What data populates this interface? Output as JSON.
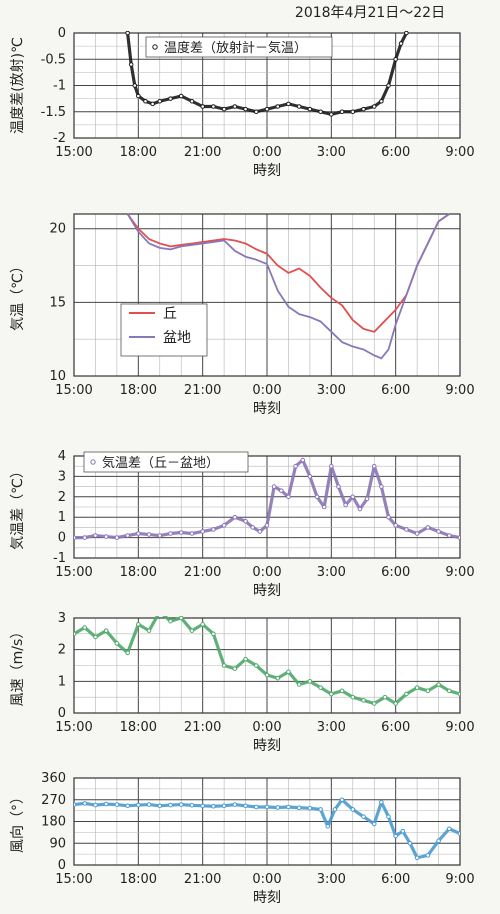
{
  "page_title": "2018年4月21日～22日",
  "x_ticks": [
    "15:00",
    "18:00",
    "21:00",
    "0:00",
    "3:00",
    "6:00",
    "9:00"
  ],
  "chart_data": [
    {
      "type": "scatter",
      "ylabel": "温度差(放射)℃",
      "xlabel": "時刻",
      "ylim": [
        -2,
        0
      ],
      "yticks": [
        "0",
        "-0.5",
        "-1",
        "-1.5",
        "-2"
      ],
      "legend": [
        "温度差（放射計－気温）"
      ],
      "legend_position": "top-left",
      "grid": true,
      "series": [
        {
          "name": "温度差（放射計－気温）",
          "color": "#1a1a1a",
          "x": [
            "17:30",
            "17:40",
            "17:50",
            "18:00",
            "18:20",
            "18:40",
            "19:00",
            "19:30",
            "20:00",
            "20:30",
            "21:00",
            "21:30",
            "22:00",
            "22:30",
            "23:00",
            "23:30",
            "0:00",
            "0:30",
            "1:00",
            "1:30",
            "2:00",
            "2:30",
            "3:00",
            "3:30",
            "4:00",
            "4:30",
            "5:00",
            "5:20",
            "5:40",
            "6:00",
            "6:15",
            "6:30"
          ],
          "y": [
            0,
            -0.6,
            -1.0,
            -1.2,
            -1.3,
            -1.35,
            -1.3,
            -1.25,
            -1.2,
            -1.3,
            -1.4,
            -1.4,
            -1.45,
            -1.4,
            -1.45,
            -1.5,
            -1.45,
            -1.4,
            -1.35,
            -1.4,
            -1.45,
            -1.5,
            -1.55,
            -1.5,
            -1.5,
            -1.45,
            -1.4,
            -1.3,
            -1.0,
            -0.5,
            -0.2,
            0
          ]
        }
      ]
    },
    {
      "type": "line",
      "ylabel": "気温（℃）",
      "xlabel": "時刻",
      "ylim": [
        10,
        21
      ],
      "yticks": [
        "20",
        "15",
        "10"
      ],
      "legend": [
        "丘",
        "盆地"
      ],
      "legend_position": "center-left",
      "grid": true,
      "series": [
        {
          "name": "丘",
          "color": "#e05050",
          "x": [
            "17:30",
            "18:00",
            "18:30",
            "19:00",
            "19:30",
            "20:00",
            "20:30",
            "21:00",
            "21:30",
            "22:00",
            "22:30",
            "23:00",
            "23:30",
            "0:00",
            "0:30",
            "1:00",
            "1:30",
            "2:00",
            "2:30",
            "3:00",
            "3:30",
            "4:00",
            "4:30",
            "5:00",
            "5:20",
            "5:40",
            "6:00",
            "6:30",
            "7:00",
            "7:30",
            "8:00",
            "8:30"
          ],
          "y": [
            21,
            20.0,
            19.3,
            19.0,
            18.8,
            18.9,
            19.0,
            19.1,
            19.2,
            19.3,
            19.2,
            19.0,
            18.6,
            18.3,
            17.5,
            17.0,
            17.3,
            16.8,
            16.0,
            15.3,
            14.8,
            13.8,
            13.2,
            13.0,
            13.5,
            14.0,
            14.5,
            15.5,
            17.5,
            19.0,
            20.5,
            21
          ]
        },
        {
          "name": "盆地",
          "color": "#8878b8",
          "x": [
            "17:30",
            "18:00",
            "18:30",
            "19:00",
            "19:30",
            "20:00",
            "20:30",
            "21:00",
            "21:30",
            "22:00",
            "22:30",
            "23:00",
            "23:30",
            "0:00",
            "0:30",
            "1:00",
            "1:30",
            "2:00",
            "2:30",
            "3:00",
            "3:30",
            "4:00",
            "4:30",
            "5:00",
            "5:20",
            "5:40",
            "6:00",
            "6:30",
            "7:00",
            "7:30",
            "8:00",
            "8:30"
          ],
          "y": [
            21,
            19.8,
            19.0,
            18.7,
            18.6,
            18.8,
            18.9,
            19.0,
            19.1,
            19.2,
            18.5,
            18.1,
            17.9,
            17.6,
            15.8,
            14.7,
            14.2,
            14.0,
            13.7,
            13.0,
            12.3,
            12.0,
            11.8,
            11.4,
            11.2,
            11.8,
            13.5,
            15.5,
            17.5,
            19.0,
            20.5,
            21
          ]
        }
      ]
    },
    {
      "type": "scatter",
      "ylabel": "気温差（℃）",
      "xlabel": "時刻",
      "ylim": [
        -1,
        4
      ],
      "yticks": [
        "4",
        "3",
        "2",
        "1",
        "0",
        "-1"
      ],
      "legend": [
        "気温差（丘－盆地）"
      ],
      "legend_position": "top-left",
      "grid": true,
      "series": [
        {
          "name": "気温差（丘－盆地）",
          "color": "#8a74b4",
          "x": [
            "15:00",
            "15:30",
            "16:00",
            "16:30",
            "17:00",
            "17:30",
            "18:00",
            "18:30",
            "19:00",
            "19:30",
            "20:00",
            "20:30",
            "21:00",
            "21:30",
            "22:00",
            "22:30",
            "23:00",
            "23:20",
            "23:40",
            "0:00",
            "0:20",
            "0:40",
            "1:00",
            "1:20",
            "1:40",
            "2:00",
            "2:20",
            "2:40",
            "3:00",
            "3:20",
            "3:40",
            "4:00",
            "4:20",
            "4:40",
            "5:00",
            "5:20",
            "5:40",
            "6:00",
            "6:30",
            "7:00",
            "7:30",
            "8:00",
            "8:30",
            "9:00"
          ],
          "y": [
            0,
            0,
            0.1,
            0.05,
            0,
            0.1,
            0.2,
            0.15,
            0.1,
            0.2,
            0.25,
            0.2,
            0.3,
            0.4,
            0.6,
            1.0,
            0.8,
            0.5,
            0.3,
            0.6,
            2.5,
            2.3,
            2.0,
            3.5,
            3.8,
            3.0,
            2.0,
            1.5,
            3.5,
            2.5,
            1.6,
            2.0,
            1.4,
            1.9,
            3.5,
            2.5,
            1.0,
            0.6,
            0.4,
            0.2,
            0.5,
            0.3,
            0.1,
            0
          ]
        }
      ]
    },
    {
      "type": "scatter",
      "ylabel": "風速（m/s）",
      "xlabel": "時刻",
      "ylim": [
        0,
        3
      ],
      "yticks": [
        "3",
        "2",
        "1",
        "0"
      ],
      "legend": [],
      "grid": true,
      "series": [
        {
          "name": "",
          "color": "#4fa86a",
          "x": [
            "15:00",
            "15:30",
            "16:00",
            "16:30",
            "17:00",
            "17:30",
            "18:00",
            "18:30",
            "19:00",
            "19:30",
            "20:00",
            "20:30",
            "21:00",
            "21:30",
            "22:00",
            "22:30",
            "23:00",
            "23:30",
            "0:00",
            "0:30",
            "1:00",
            "1:30",
            "2:00",
            "2:30",
            "3:00",
            "3:30",
            "4:00",
            "4:30",
            "5:00",
            "5:30",
            "6:00",
            "6:30",
            "7:00",
            "7:30",
            "8:00",
            "8:30",
            "9:00"
          ],
          "y": [
            2.5,
            2.7,
            2.4,
            2.6,
            2.2,
            1.9,
            2.8,
            2.6,
            3.2,
            2.9,
            3.0,
            2.6,
            2.8,
            2.5,
            1.5,
            1.4,
            1.7,
            1.5,
            1.2,
            1.1,
            1.3,
            0.9,
            1.0,
            0.8,
            0.6,
            0.7,
            0.5,
            0.4,
            0.3,
            0.5,
            0.3,
            0.6,
            0.8,
            0.7,
            0.9,
            0.7,
            0.6
          ]
        }
      ]
    },
    {
      "type": "scatter",
      "ylabel": "風向（°）",
      "xlabel": "時刻",
      "ylim": [
        0,
        360
      ],
      "yticks": [
        "360",
        "270",
        "180",
        "90",
        "0"
      ],
      "legend": [],
      "grid": true,
      "series": [
        {
          "name": "",
          "color": "#4a9ad0",
          "x": [
            "15:00",
            "15:30",
            "16:00",
            "16:30",
            "17:00",
            "17:30",
            "18:00",
            "18:30",
            "19:00",
            "19:30",
            "20:00",
            "20:30",
            "21:00",
            "21:30",
            "22:00",
            "22:30",
            "23:00",
            "23:30",
            "0:00",
            "0:30",
            "1:00",
            "1:30",
            "2:00",
            "2:30",
            "2:50",
            "3:10",
            "3:30",
            "4:00",
            "4:30",
            "5:00",
            "5:20",
            "5:40",
            "6:00",
            "6:20",
            "6:40",
            "7:00",
            "7:30",
            "8:00",
            "8:30",
            "9:00"
          ],
          "y": [
            250,
            255,
            248,
            252,
            250,
            245,
            248,
            250,
            245,
            248,
            250,
            247,
            245,
            243,
            245,
            250,
            245,
            240,
            240,
            238,
            240,
            237,
            235,
            230,
            160,
            230,
            270,
            230,
            200,
            170,
            260,
            200,
            120,
            140,
            90,
            30,
            40,
            100,
            150,
            130
          ]
        }
      ]
    }
  ]
}
